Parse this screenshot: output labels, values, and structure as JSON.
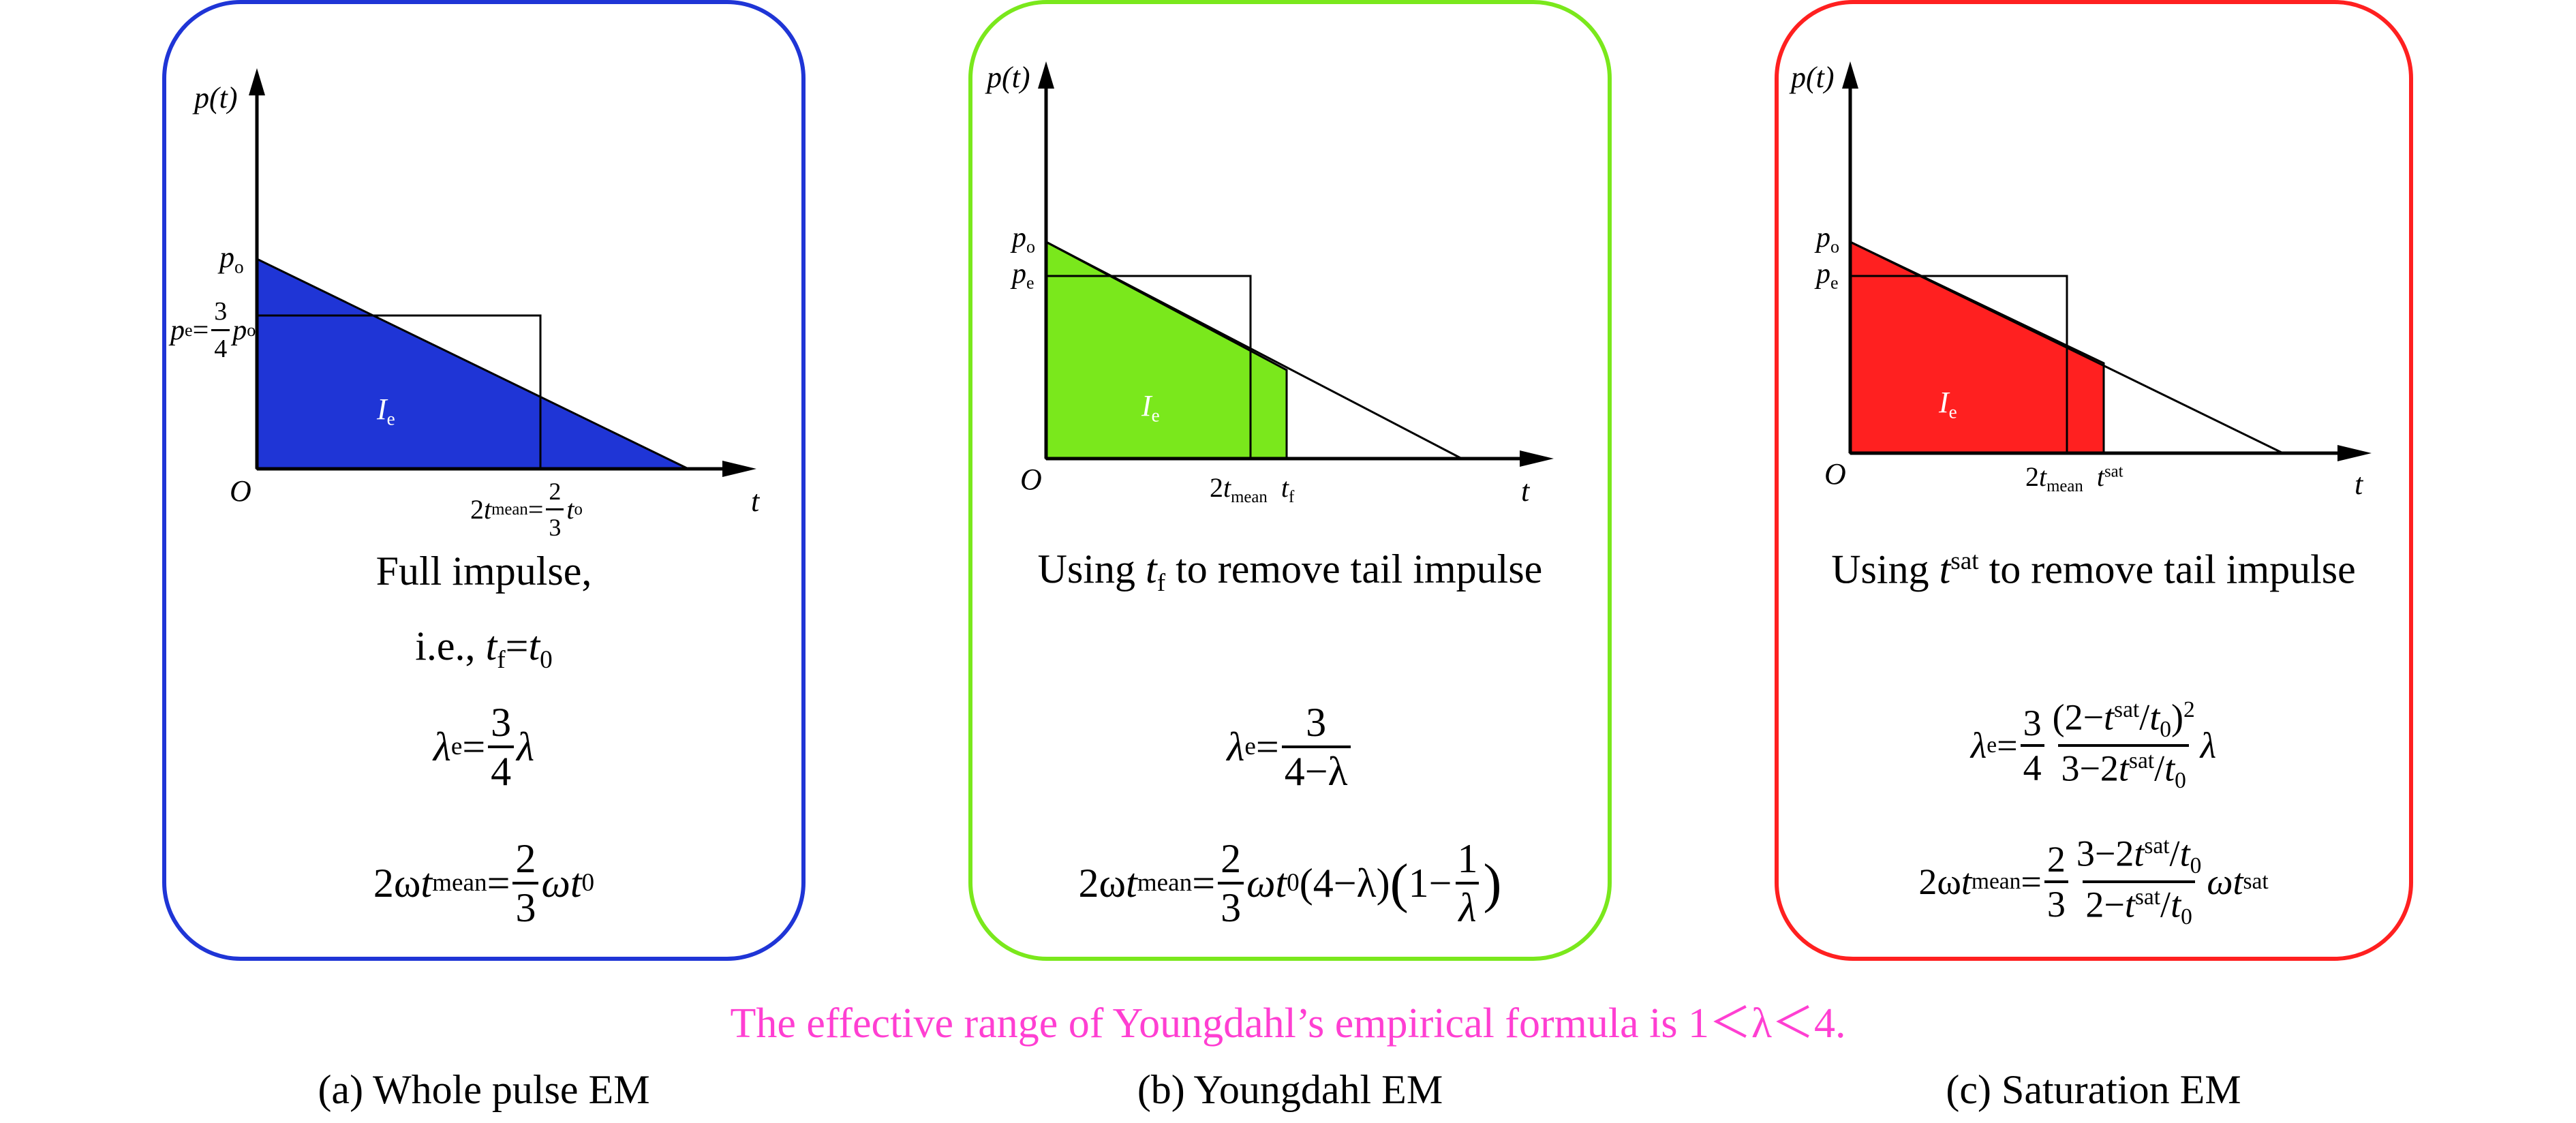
{
  "colors": {
    "blue": "#1f35d6",
    "green": "#7ae81c",
    "red": "#ff2020",
    "magenta": "#ff3fd2"
  },
  "panels": [
    {
      "id": "a",
      "ylabel": "p(t)",
      "origin": "O",
      "xlabel": "t",
      "area_label": "I",
      "area_label_sub": "e",
      "p0_label": "p",
      "p0_sub": "o",
      "pe_label": "p",
      "pe_sub": "e",
      "pe_eq": "=",
      "pe_frac_num": "3",
      "pe_frac_den": "4",
      "pe_tail": "p",
      "pe_tail_sub": "o",
      "tick_prefix": "2",
      "tick_t": "t",
      "tick_sub": "mean",
      "tick_eq": "=",
      "tick_frac_num": "2",
      "tick_frac_den": "3",
      "tick_tail": "t",
      "tick_tail_sub": "o",
      "desc1": "Full impulse,",
      "desc2_a": "i.e., ",
      "desc2_t1": "t",
      "desc2_s1": "f",
      "desc2_eq": "=",
      "desc2_t2": "t",
      "desc2_s2": "0",
      "caption": "(a) Whole pulse EM"
    },
    {
      "id": "b",
      "ylabel": "p(t)",
      "origin": "O",
      "xlabel": "t",
      "area_label": "I",
      "area_label_sub": "e",
      "p0_label": "p",
      "p0_sub": "o",
      "pe_label": "p",
      "pe_sub": "e",
      "tick1_prefix": "2",
      "tick1_t": "t",
      "tick1_sub": "mean",
      "tick2_t": "t",
      "tick2_sub": "f",
      "desc_a": "Using ",
      "desc_t": "t",
      "desc_sub": "f",
      "desc_b": " to remove tail impulse",
      "caption": "(b) Youngdahl EM"
    },
    {
      "id": "c",
      "ylabel": "p(t)",
      "origin": "O",
      "xlabel": "t",
      "area_label": "I",
      "area_label_sub": "e",
      "p0_label": "p",
      "p0_sub": "o",
      "pe_label": "p",
      "pe_sub": "e",
      "tick1_prefix": "2",
      "tick1_t": "t",
      "tick1_sub": "mean",
      "tick2_t": "t",
      "tick2_sup": "sat",
      "desc_a": "Using ",
      "desc_t": "t",
      "desc_sup": "sat",
      "desc_b": " to remove tail impulse",
      "caption": "(c) Saturation EM"
    }
  ],
  "formulas": {
    "a_lambda_lhs": "λ",
    "a_lambda_sub": "e",
    "a_lambda_eq": "=",
    "a_lambda_num": "3",
    "a_lambda_den": "4",
    "a_lambda_tail": "λ",
    "a_t_pre": "2ω",
    "a_t_t": "t",
    "a_t_sub": "mean",
    "a_t_eq": "=",
    "a_t_num": "2",
    "a_t_den": "3",
    "a_t_tail": "ωt",
    "a_t_tail_sub": "0",
    "b_lambda_lhs": "λ",
    "b_lambda_sub": "e",
    "b_lambda_eq": "=",
    "b_lambda_num": "3",
    "b_lambda_den": "4−λ",
    "b_t_pre": "2ω",
    "b_t_t": "t",
    "b_t_sub": "mean",
    "b_t_eq": "=",
    "b_t_num": "2",
    "b_t_den": "3",
    "b_t_mid": "ωt",
    "b_t_mid_sub": "0",
    "b_t_paren": "(4−λ)",
    "b_t_open": "(",
    "b_t_one": "1−",
    "b_t_inner_num": "1",
    "b_t_inner_den": "λ",
    "b_t_close": ")",
    "c_lambda_lhs": "λ",
    "c_lambda_sub": "e",
    "c_lambda_eq": "=",
    "c_lambda_num1": "3",
    "c_lambda_den1": "4",
    "c_lambda_num2_a": "(2−",
    "c_lambda_num2_t": "t",
    "c_lambda_num2_sup": "sat",
    "c_lambda_num2_b": "/",
    "c_lambda_num2_t0": "t",
    "c_lambda_num2_t0sub": "0",
    "c_lambda_num2_c": ")",
    "c_lambda_num2_pow": "2",
    "c_lambda_den2_a": "3−2",
    "c_lambda_den2_t": "t",
    "c_lambda_den2_sup": "sat",
    "c_lambda_den2_b": "/",
    "c_lambda_den2_t0": "t",
    "c_lambda_den2_t0sub": "0",
    "c_lambda_tail": "λ",
    "c_t_pre": "2ω",
    "c_t_t": "t",
    "c_t_sub": "mean",
    "c_t_eq": "=",
    "c_t_num1": "2",
    "c_t_den1": "3",
    "c_t_num2_a": "3−2",
    "c_t_num2_t": "t",
    "c_t_num2_sup": "sat",
    "c_t_num2_b": "/",
    "c_t_num2_t0": "t",
    "c_t_num2_t0sub": "0",
    "c_t_den2_a": "2−",
    "c_t_den2_t": "t",
    "c_t_den2_sup": "sat",
    "c_t_den2_b": "/",
    "c_t_den2_t0": "t",
    "c_t_den2_t0sub": "0",
    "c_t_tail": "ωt",
    "c_t_tail_sup": "sat"
  },
  "range_note": "The effective range of Youngdahl’s empirical formula is 1＜λ＜4."
}
